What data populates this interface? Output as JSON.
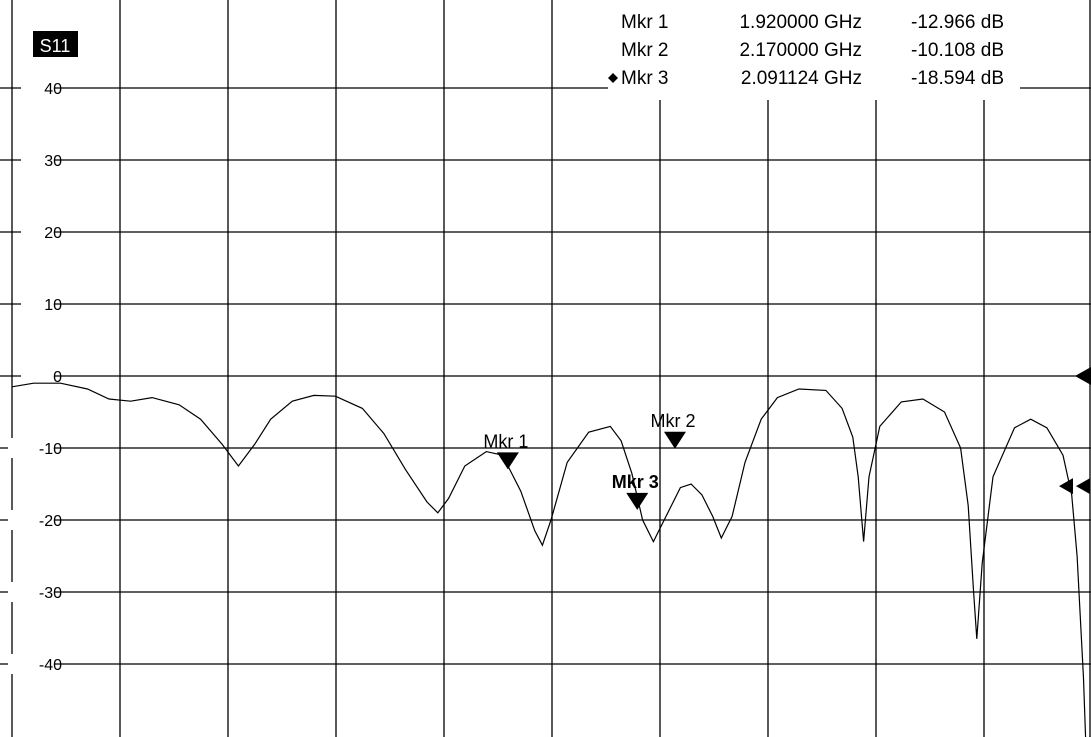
{
  "window": {
    "trace_label": "S11"
  },
  "marker_table": [
    {
      "name": "Mkr 1",
      "freq": "1.920000 GHz",
      "value": "-12.966 dB",
      "active": false
    },
    {
      "name": "Mkr 2",
      "freq": "2.170000 GHz",
      "value": "-10.108 dB",
      "active": false
    },
    {
      "name": "Mkr 3",
      "freq": "2.091124 GHz",
      "value": "-18.594 dB",
      "active": true
    }
  ],
  "chart_data": {
    "type": "line",
    "title": "",
    "xlabel": "",
    "ylabel": "",
    "ylim": [
      -50,
      50
    ],
    "yticks": [
      40,
      30,
      20,
      10,
      0,
      -10,
      -20,
      -30,
      -40
    ],
    "ytick_labels": [
      "40",
      "30",
      "20",
      "10",
      "0",
      "-10",
      "-20",
      "-30",
      "-40"
    ],
    "xlim": [
      0,
      10
    ],
    "x_divisions": 10,
    "grid": true,
    "reference_level": 0,
    "series": [
      {
        "name": "S11",
        "color": "#000000",
        "points": [
          [
            0.0,
            -1.5
          ],
          [
            0.2,
            -1.0
          ],
          [
            0.45,
            -1.0
          ],
          [
            0.7,
            -1.8
          ],
          [
            0.9,
            -3.2
          ],
          [
            1.1,
            -3.5
          ],
          [
            1.3,
            -3.0
          ],
          [
            1.55,
            -4.0
          ],
          [
            1.75,
            -6.0
          ],
          [
            1.95,
            -9.5
          ],
          [
            2.1,
            -12.5
          ],
          [
            2.25,
            -9.5
          ],
          [
            2.4,
            -6.0
          ],
          [
            2.6,
            -3.5
          ],
          [
            2.8,
            -2.7
          ],
          [
            3.0,
            -2.8
          ],
          [
            3.25,
            -4.5
          ],
          [
            3.45,
            -8.0
          ],
          [
            3.65,
            -13.0
          ],
          [
            3.85,
            -17.5
          ],
          [
            3.95,
            -19.0
          ],
          [
            4.05,
            -17.0
          ],
          [
            4.2,
            -12.5
          ],
          [
            4.4,
            -10.5
          ],
          [
            4.55,
            -11.0
          ],
          [
            4.72,
            -16.0
          ],
          [
            4.85,
            -21.5
          ],
          [
            4.92,
            -23.5
          ],
          [
            5.0,
            -20.0
          ],
          [
            5.15,
            -12.0
          ],
          [
            5.35,
            -7.8
          ],
          [
            5.55,
            -7.0
          ],
          [
            5.65,
            -9.0
          ],
          [
            5.75,
            -13.5
          ],
          [
            5.85,
            -20.0
          ],
          [
            5.95,
            -23.0
          ],
          [
            6.05,
            -20.0
          ],
          [
            6.2,
            -15.5
          ],
          [
            6.3,
            -15.0
          ],
          [
            6.4,
            -16.5
          ],
          [
            6.5,
            -19.5
          ],
          [
            6.58,
            -22.5
          ],
          [
            6.68,
            -19.5
          ],
          [
            6.8,
            -12.0
          ],
          [
            6.95,
            -6.0
          ],
          [
            7.1,
            -3.0
          ],
          [
            7.3,
            -1.8
          ],
          [
            7.55,
            -2.0
          ],
          [
            7.7,
            -4.5
          ],
          [
            7.8,
            -8.5
          ],
          [
            7.85,
            -14.0
          ],
          [
            7.9,
            -23.0
          ],
          [
            7.95,
            -14.0
          ],
          [
            8.05,
            -7.0
          ],
          [
            8.25,
            -3.6
          ],
          [
            8.45,
            -3.2
          ],
          [
            8.65,
            -5.0
          ],
          [
            8.8,
            -10.0
          ],
          [
            8.87,
            -18.0
          ],
          [
            8.92,
            -30.0
          ],
          [
            8.95,
            -36.5
          ],
          [
            9.0,
            -26.0
          ],
          [
            9.1,
            -14.0
          ],
          [
            9.3,
            -7.2
          ],
          [
            9.45,
            -6.0
          ],
          [
            9.6,
            -7.2
          ],
          [
            9.75,
            -11.0
          ],
          [
            9.83,
            -16.5
          ],
          [
            9.88,
            -25.0
          ],
          [
            9.94,
            -42.0
          ],
          [
            9.97,
            -55.0
          ],
          [
            10.0,
            -50.0
          ]
        ]
      }
    ],
    "markers": [
      {
        "label": "Mkr 1",
        "x": 4.6,
        "y": -12.966,
        "active": false
      },
      {
        "label": "Mkr 2",
        "x": 6.15,
        "y": -10.108,
        "active": false
      },
      {
        "label": "Mkr 3",
        "x": 5.8,
        "y": -18.594,
        "active": true
      }
    ]
  }
}
